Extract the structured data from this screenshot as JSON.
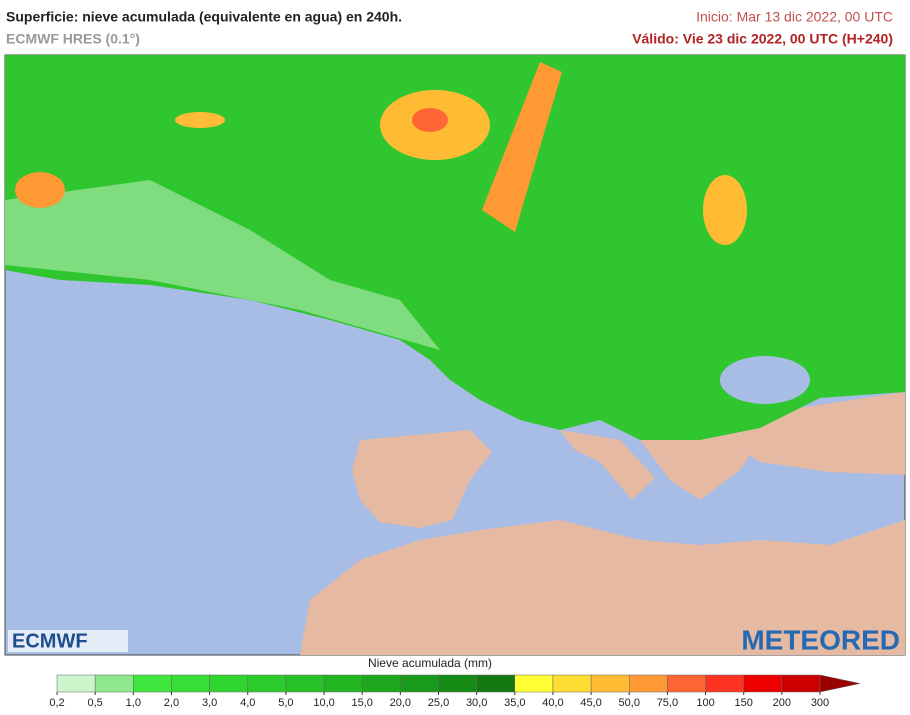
{
  "header": {
    "title": "Superficie: nieve acumulada (equivalente en agua) en 240h.",
    "model": "ECMWF HRES (0.1°)",
    "init": "Inicio: Mar 13 dic 2022, 00 UTC",
    "valid": "Válido: Vie 23 dic 2022, 00 UTC (H+240)"
  },
  "logos": {
    "left": "ECMWF",
    "right": "METEORED"
  },
  "legend": {
    "title": "Nieve acumulada (mm)",
    "ticks": [
      "0,2",
      "0,5",
      "1,0",
      "2,0",
      "3,0",
      "4,0",
      "5,0",
      "10,0",
      "15,0",
      "20,0",
      "25,0",
      "30,0",
      "35,0",
      "40,0",
      "45,0",
      "50,0",
      "75,0",
      "100",
      "150",
      "200",
      "300"
    ],
    "colors": [
      "#ccf5cc",
      "#8ee88e",
      "#3ee63e",
      "#36de36",
      "#30d530",
      "#2bcc2b",
      "#27c227",
      "#22b522",
      "#1ea81e",
      "#1a9a1a",
      "#168c16",
      "#127812",
      "#ffff33",
      "#ffdd33",
      "#ffbb33",
      "#ff9933",
      "#ff6633",
      "#ff3322",
      "#ee0000",
      "#cc0000",
      "#990000"
    ]
  }
}
